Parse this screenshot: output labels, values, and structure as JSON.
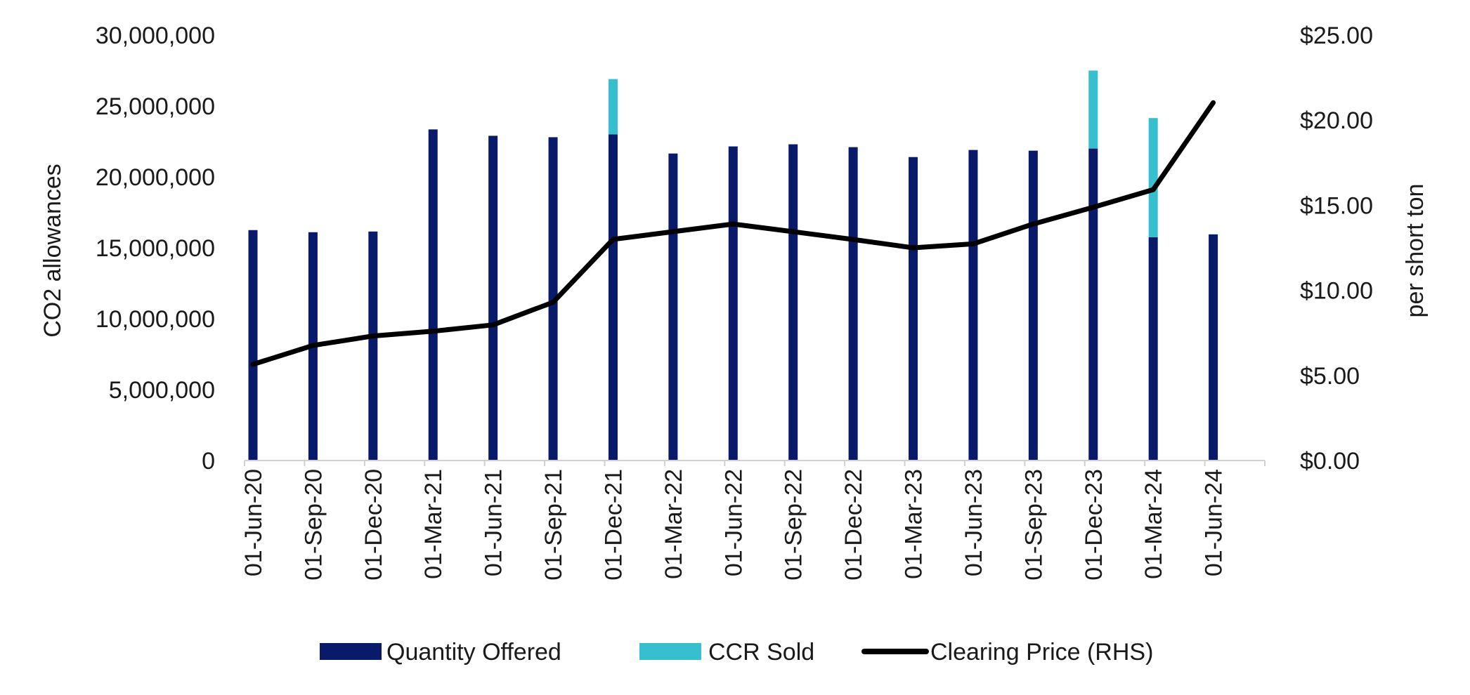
{
  "chart_data": {
    "type": "bar",
    "categories": [
      "01-Jun-20",
      "01-Sep-20",
      "01-Dec-20",
      "01-Mar-21",
      "01-Jun-21",
      "01-Sep-21",
      "01-Dec-21",
      "01-Mar-22",
      "01-Jun-22",
      "01-Sep-22",
      "01-Dec-22",
      "01-Mar-23",
      "01-Jun-23",
      "01-Sep-23",
      "01-Dec-23",
      "01-Mar-24",
      "01-Jun-24"
    ],
    "series": [
      {
        "name": "Quantity Offered",
        "type": "bar",
        "axis": "left",
        "color": "#0a1a6b",
        "values": [
          16250000,
          16100000,
          16150000,
          23350000,
          22900000,
          22800000,
          23000000,
          21650000,
          22150000,
          22300000,
          22100000,
          21400000,
          21900000,
          21850000,
          22000000,
          15750000,
          15950000
        ]
      },
      {
        "name": "CCR Sold",
        "type": "bar-stacked",
        "axis": "left",
        "color": "#36bfcf",
        "values": [
          0,
          0,
          0,
          0,
          0,
          0,
          3900000,
          0,
          0,
          0,
          0,
          0,
          0,
          0,
          5500000,
          8400000,
          0
        ]
      },
      {
        "name": "Clearing Price (RHS)",
        "type": "line",
        "axis": "right",
        "color": "#000000",
        "values": [
          5.65,
          6.76,
          7.32,
          7.6,
          7.97,
          9.3,
          13.0,
          13.45,
          13.9,
          13.45,
          12.99,
          12.5,
          12.73,
          13.9,
          14.88,
          15.92,
          21.03
        ]
      }
    ],
    "y_left": {
      "label": "CO2 allowances",
      "range": [
        0,
        30000000
      ],
      "ticks": [
        "0",
        "5,000,000",
        "10,000,000",
        "15,000,000",
        "20,000,000",
        "25,000,000",
        "30,000,000"
      ]
    },
    "y_right": {
      "label": "per short ton",
      "range": [
        0,
        25
      ],
      "ticks": [
        "$0.00",
        "$5.00",
        "$10.00",
        "$15.00",
        "$20.00",
        "$25.00"
      ]
    },
    "grid": false,
    "legend_position": "bottom",
    "legend": [
      "Quantity Offered",
      "CCR Sold",
      "Clearing Price (RHS)"
    ]
  }
}
